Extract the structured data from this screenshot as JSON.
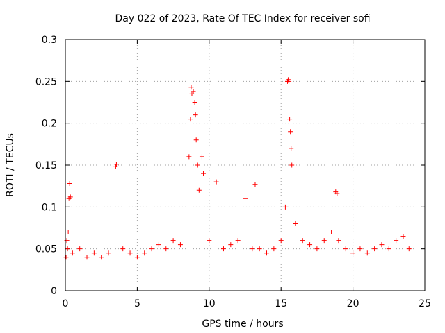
{
  "chart_data": {
    "type": "scatter",
    "title": "Day 022 of 2023, Rate Of TEC Index for receiver sofi",
    "xlabel": "GPS time / hours",
    "ylabel": "ROTI / TECUs",
    "xlim": [
      0,
      25
    ],
    "ylim": [
      0,
      0.3
    ],
    "xticks": [
      0,
      5,
      10,
      15,
      20,
      25
    ],
    "yticks": [
      0,
      0.05,
      0.1,
      0.15,
      0.2,
      0.25,
      0.3
    ],
    "xtick_labels": [
      "0",
      "5",
      "10",
      "15",
      "20",
      "25"
    ],
    "ytick_labels": [
      "0",
      "0.05",
      "0.1",
      "0.15",
      "0.2",
      "0.25",
      "0.3"
    ],
    "grid": true,
    "marker": "+",
    "color": "#ff0000",
    "series": [
      {
        "name": "ROTI",
        "points": [
          [
            0.05,
            0.04
          ],
          [
            0.1,
            0.06
          ],
          [
            0.15,
            0.05
          ],
          [
            0.2,
            0.07
          ],
          [
            0.25,
            0.11
          ],
          [
            0.3,
            0.128
          ],
          [
            0.35,
            0.112
          ],
          [
            0.5,
            0.045
          ],
          [
            1.0,
            0.05
          ],
          [
            1.5,
            0.04
          ],
          [
            2.0,
            0.045
          ],
          [
            2.5,
            0.04
          ],
          [
            3.0,
            0.045
          ],
          [
            3.5,
            0.148
          ],
          [
            3.55,
            0.151
          ],
          [
            4.0,
            0.05
          ],
          [
            4.5,
            0.045
          ],
          [
            5.0,
            0.04
          ],
          [
            5.5,
            0.045
          ],
          [
            6.0,
            0.05
          ],
          [
            6.5,
            0.055
          ],
          [
            7.0,
            0.05
          ],
          [
            7.5,
            0.06
          ],
          [
            8.0,
            0.055
          ],
          [
            8.6,
            0.16
          ],
          [
            8.7,
            0.205
          ],
          [
            8.75,
            0.243
          ],
          [
            8.8,
            0.235
          ],
          [
            8.9,
            0.238
          ],
          [
            9.0,
            0.225
          ],
          [
            9.05,
            0.21
          ],
          [
            9.1,
            0.18
          ],
          [
            9.2,
            0.15
          ],
          [
            9.3,
            0.12
          ],
          [
            9.5,
            0.16
          ],
          [
            9.6,
            0.14
          ],
          [
            10.0,
            0.06
          ],
          [
            10.5,
            0.13
          ],
          [
            11.0,
            0.05
          ],
          [
            11.5,
            0.055
          ],
          [
            12.0,
            0.06
          ],
          [
            12.5,
            0.11
          ],
          [
            13.0,
            0.05
          ],
          [
            13.2,
            0.127
          ],
          [
            13.5,
            0.05
          ],
          [
            14.0,
            0.045
          ],
          [
            14.5,
            0.05
          ],
          [
            15.0,
            0.06
          ],
          [
            15.3,
            0.1
          ],
          [
            15.45,
            0.25
          ],
          [
            15.5,
            0.252
          ],
          [
            15.55,
            0.25
          ],
          [
            15.6,
            0.205
          ],
          [
            15.65,
            0.19
          ],
          [
            15.7,
            0.17
          ],
          [
            15.75,
            0.15
          ],
          [
            16.0,
            0.08
          ],
          [
            16.5,
            0.06
          ],
          [
            17.0,
            0.055
          ],
          [
            17.5,
            0.05
          ],
          [
            18.0,
            0.06
          ],
          [
            18.5,
            0.07
          ],
          [
            18.8,
            0.118
          ],
          [
            18.9,
            0.116
          ],
          [
            19.0,
            0.06
          ],
          [
            19.5,
            0.05
          ],
          [
            20.0,
            0.045
          ],
          [
            20.5,
            0.05
          ],
          [
            21.0,
            0.045
          ],
          [
            21.5,
            0.05
          ],
          [
            22.0,
            0.055
          ],
          [
            22.5,
            0.05
          ],
          [
            23.0,
            0.06
          ],
          [
            23.5,
            0.065
          ],
          [
            23.9,
            0.05
          ]
        ]
      }
    ]
  }
}
